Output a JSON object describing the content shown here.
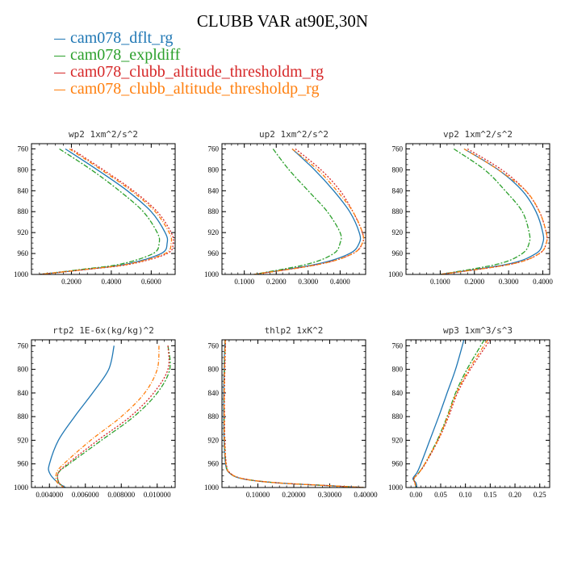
{
  "figure": {
    "title": "CLUBB VAR at90E,30N",
    "colors": {
      "dflt": "#1f77b4",
      "expldiff": "#2ca02c",
      "thresholdm": "#d62728",
      "thresholdp": "#ff7f0e"
    },
    "legend": [
      {
        "label": "cam078_dflt_rg",
        "color": "#1f77b4"
      },
      {
        "label": "cam078_expldiff",
        "color": "#2ca02c"
      },
      {
        "label": "cam078_clubb_altitude_thresholdm_rg",
        "color": "#d62728"
      },
      {
        "label": "cam078_clubb_altitude_thresholdp_rg",
        "color": "#ff7f0e"
      }
    ]
  },
  "chart_data": [
    {
      "type": "line",
      "title": "wp2  1xm^2/s^2",
      "xlim": [
        0.0,
        0.72
      ],
      "ylim": [
        1000,
        750
      ],
      "x_ticks": [
        "0.2000",
        "0.4000",
        "0.6000"
      ],
      "x_tick_values": [
        0.2,
        0.4,
        0.6
      ],
      "y_ticks": [
        "760",
        "800",
        "840",
        "880",
        "920",
        "960",
        "1000"
      ],
      "series": [
        {
          "name": "cam078_dflt_rg",
          "y": [
            760,
            800,
            840,
            880,
            920,
            940,
            960,
            980,
            990,
            1000
          ],
          "x": [
            0.17,
            0.33,
            0.48,
            0.6,
            0.67,
            0.68,
            0.65,
            0.48,
            0.28,
            0.04
          ]
        },
        {
          "name": "cam078_expldiff",
          "y": [
            760,
            800,
            840,
            880,
            920,
            940,
            960,
            980,
            990,
            1000
          ],
          "x": [
            0.14,
            0.3,
            0.44,
            0.56,
            0.63,
            0.64,
            0.61,
            0.45,
            0.26,
            0.04
          ]
        },
        {
          "name": "cam078_clubb_altitude_thresholdm_rg",
          "y": [
            760,
            800,
            840,
            880,
            920,
            940,
            960,
            980,
            990,
            1000
          ],
          "x": [
            0.2,
            0.36,
            0.51,
            0.63,
            0.7,
            0.71,
            0.68,
            0.5,
            0.29,
            0.04
          ]
        },
        {
          "name": "cam078_clubb_altitude_thresholdp_rg",
          "y": [
            760,
            800,
            840,
            880,
            920,
            940,
            960,
            980,
            990,
            1000
          ],
          "x": [
            0.19,
            0.35,
            0.5,
            0.62,
            0.69,
            0.7,
            0.67,
            0.49,
            0.28,
            0.04
          ]
        }
      ]
    },
    {
      "type": "line",
      "title": "up2  1xm^2/s^2",
      "xlim": [
        0.03,
        0.48
      ],
      "ylim": [
        1000,
        750
      ],
      "x_ticks": [
        "0.1000",
        "0.2000",
        "0.3000",
        "0.4000"
      ],
      "x_tick_values": [
        0.1,
        0.2,
        0.3,
        0.4
      ],
      "y_ticks": [
        "760",
        "800",
        "840",
        "880",
        "920",
        "960",
        "1000"
      ],
      "series": [
        {
          "name": "cam078_dflt_rg",
          "y": [
            760,
            800,
            840,
            880,
            920,
            940,
            960,
            980,
            1000
          ],
          "x": [
            0.25,
            0.32,
            0.38,
            0.43,
            0.46,
            0.46,
            0.43,
            0.33,
            0.13
          ]
        },
        {
          "name": "cam078_expldiff",
          "y": [
            760,
            800,
            840,
            880,
            920,
            940,
            960,
            980,
            1000
          ],
          "x": [
            0.19,
            0.24,
            0.3,
            0.36,
            0.4,
            0.4,
            0.38,
            0.3,
            0.13
          ]
        },
        {
          "name": "cam078_clubb_altitude_thresholdm_rg",
          "y": [
            760,
            800,
            840,
            880,
            920,
            940,
            960,
            980,
            1000
          ],
          "x": [
            0.26,
            0.34,
            0.4,
            0.44,
            0.47,
            0.47,
            0.44,
            0.34,
            0.13
          ]
        },
        {
          "name": "cam078_clubb_altitude_thresholdp_rg",
          "y": [
            760,
            800,
            840,
            880,
            920,
            940,
            960,
            980,
            1000
          ],
          "x": [
            0.25,
            0.33,
            0.39,
            0.44,
            0.47,
            0.47,
            0.44,
            0.34,
            0.13
          ]
        }
      ]
    },
    {
      "type": "line",
      "title": "vp2  1xm^2/s^2",
      "xlim": [
        0.0,
        0.42
      ],
      "ylim": [
        1000,
        750
      ],
      "x_ticks": [
        "0.1000",
        "0.2000",
        "0.3000",
        "0.4000"
      ],
      "x_tick_values": [
        0.1,
        0.2,
        0.3,
        0.4
      ],
      "y_ticks": [
        "760",
        "800",
        "840",
        "880",
        "920",
        "960",
        "1000"
      ],
      "series": [
        {
          "name": "cam078_dflt_rg",
          "y": [
            760,
            800,
            840,
            880,
            920,
            940,
            960,
            980,
            1000
          ],
          "x": [
            0.17,
            0.27,
            0.34,
            0.38,
            0.4,
            0.4,
            0.38,
            0.3,
            0.1
          ]
        },
        {
          "name": "cam078_expldiff",
          "y": [
            760,
            800,
            840,
            880,
            920,
            940,
            960,
            980,
            1000
          ],
          "x": [
            0.14,
            0.23,
            0.29,
            0.34,
            0.36,
            0.36,
            0.34,
            0.27,
            0.1
          ]
        },
        {
          "name": "cam078_clubb_altitude_thresholdm_rg",
          "y": [
            760,
            800,
            840,
            880,
            920,
            940,
            960,
            980,
            1000
          ],
          "x": [
            0.18,
            0.28,
            0.35,
            0.39,
            0.41,
            0.41,
            0.39,
            0.31,
            0.1
          ]
        },
        {
          "name": "cam078_clubb_altitude_thresholdp_rg",
          "y": [
            760,
            800,
            840,
            880,
            920,
            940,
            960,
            980,
            1000
          ],
          "x": [
            0.17,
            0.27,
            0.35,
            0.39,
            0.41,
            0.41,
            0.39,
            0.31,
            0.1
          ]
        }
      ]
    },
    {
      "type": "line",
      "title": "rtp2  1E-6x(kg/kg)^2",
      "xlim": [
        0.003,
        0.011
      ],
      "ylim": [
        1000,
        750
      ],
      "x_ticks": [
        "0.004000",
        "0.006000",
        "0.008000",
        "0.010000"
      ],
      "x_tick_values": [
        0.004,
        0.006,
        0.008,
        0.01
      ],
      "y_ticks": [
        "760",
        "800",
        "840",
        "880",
        "920",
        "960",
        "1000"
      ],
      "series": [
        {
          "name": "cam078_dflt_rg",
          "y": [
            760,
            800,
            840,
            880,
            920,
            960,
            975,
            990,
            1000
          ],
          "x": [
            0.0076,
            0.0073,
            0.0064,
            0.0054,
            0.0045,
            0.004,
            0.004,
            0.0044,
            0.0049
          ]
        },
        {
          "name": "cam078_expldiff",
          "y": [
            760,
            800,
            840,
            880,
            920,
            960,
            975,
            990,
            1000
          ],
          "x": [
            0.0106,
            0.0107,
            0.01,
            0.0087,
            0.0069,
            0.0051,
            0.0045,
            0.0045,
            0.0048
          ]
        },
        {
          "name": "cam078_clubb_altitude_thresholdm_rg",
          "y": [
            760,
            800,
            840,
            880,
            920,
            960,
            975,
            990,
            1000
          ],
          "x": [
            0.0106,
            0.0106,
            0.0098,
            0.0085,
            0.0067,
            0.005,
            0.0045,
            0.0045,
            0.0048
          ]
        },
        {
          "name": "cam078_clubb_altitude_thresholdp_rg",
          "y": [
            760,
            800,
            840,
            880,
            920,
            960,
            975,
            990,
            1000
          ],
          "x": [
            0.0101,
            0.01,
            0.0093,
            0.008,
            0.0063,
            0.0048,
            0.0044,
            0.0044,
            0.0048
          ]
        }
      ]
    },
    {
      "type": "line",
      "title": "thlp2  1xK^2",
      "xlim": [
        0.0,
        0.4
      ],
      "ylim": [
        1000,
        750
      ],
      "x_ticks": [
        "0.10000",
        "0.20000",
        "0.30000",
        "0.40000"
      ],
      "x_tick_values": [
        0.1,
        0.2,
        0.3,
        0.4
      ],
      "y_ticks": [
        "760",
        "800",
        "840",
        "880",
        "920",
        "960",
        "1000"
      ],
      "series": [
        {
          "name": "cam078_dflt_rg",
          "y": [
            750,
            800,
            840,
            880,
            920,
            960,
            975,
            985,
            992,
            997,
            1000
          ],
          "x": [
            0.008,
            0.006,
            0.005,
            0.005,
            0.006,
            0.01,
            0.02,
            0.055,
            0.15,
            0.3,
            0.395
          ]
        },
        {
          "name": "cam078_expldiff",
          "y": [
            750,
            800,
            840,
            880,
            920,
            960,
            975,
            985,
            992,
            997,
            1000
          ],
          "x": [
            0.009,
            0.007,
            0.006,
            0.006,
            0.007,
            0.011,
            0.021,
            0.057,
            0.152,
            0.302,
            0.395
          ]
        },
        {
          "name": "cam078_clubb_altitude_thresholdm_rg",
          "y": [
            750,
            800,
            840,
            880,
            920,
            960,
            975,
            985,
            992,
            997,
            1000
          ],
          "x": [
            0.01,
            0.008,
            0.007,
            0.007,
            0.008,
            0.012,
            0.022,
            0.058,
            0.153,
            0.303,
            0.395
          ]
        },
        {
          "name": "cam078_clubb_altitude_thresholdp_rg",
          "y": [
            750,
            800,
            840,
            880,
            920,
            960,
            975,
            985,
            992,
            997,
            1000
          ],
          "x": [
            0.009,
            0.007,
            0.006,
            0.006,
            0.007,
            0.011,
            0.021,
            0.057,
            0.151,
            0.301,
            0.395
          ]
        }
      ]
    },
    {
      "type": "line",
      "title": "wp3  1xm^3/s^3",
      "xlim": [
        -0.02,
        0.27
      ],
      "ylim": [
        1000,
        750
      ],
      "x_ticks": [
        "0.00",
        "0.05",
        "0.10",
        "0.15",
        "0.20",
        "0.25"
      ],
      "x_tick_values": [
        0.0,
        0.05,
        0.1,
        0.15,
        0.2,
        0.25
      ],
      "y_ticks": [
        "760",
        "800",
        "840",
        "880",
        "920",
        "960",
        "1000"
      ],
      "series": [
        {
          "name": "cam078_dflt_rg",
          "y": [
            750,
            800,
            840,
            880,
            920,
            960,
            975,
            985,
            992,
            1000
          ],
          "x": [
            0.097,
            0.08,
            0.063,
            0.046,
            0.028,
            0.01,
            0.002,
            -0.006,
            0.0,
            0.002
          ]
        },
        {
          "name": "cam078_expldiff",
          "y": [
            750,
            800,
            840,
            880,
            920,
            960,
            975,
            985,
            992,
            1000
          ],
          "x": [
            0.138,
            0.103,
            0.08,
            0.063,
            0.043,
            0.018,
            0.006,
            -0.004,
            -0.002,
            0.0
          ]
        },
        {
          "name": "cam078_clubb_altitude_thresholdm_rg",
          "y": [
            750,
            800,
            840,
            880,
            920,
            960,
            975,
            985,
            992,
            1000
          ],
          "x": [
            0.15,
            0.11,
            0.084,
            0.066,
            0.045,
            0.019,
            0.006,
            -0.004,
            -0.002,
            0.0
          ]
        },
        {
          "name": "cam078_clubb_altitude_thresholdp_rg",
          "y": [
            750,
            800,
            840,
            880,
            920,
            960,
            975,
            985,
            992,
            1000
          ],
          "x": [
            0.145,
            0.107,
            0.082,
            0.064,
            0.044,
            0.018,
            0.006,
            -0.004,
            -0.002,
            0.0
          ]
        }
      ]
    }
  ]
}
